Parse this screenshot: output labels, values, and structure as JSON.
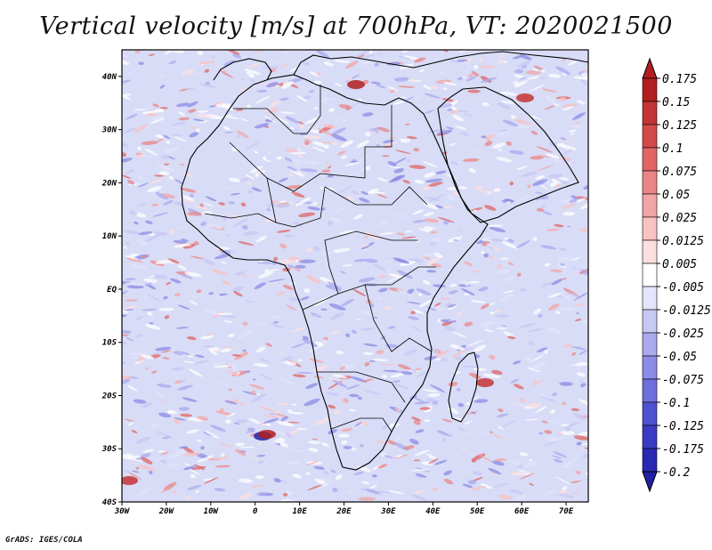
{
  "title": "Vertical velocity [m/s] at 700hPa, VT: 2020021500",
  "credit": "GrADS: IGES/COLA",
  "colors": {
    "plot_background": "#d8dcf6",
    "coastline": "#000000",
    "zero_contour": "#ffffff"
  },
  "map": {
    "region": "Africa",
    "lon_range": [
      -30,
      75
    ],
    "lat_range": [
      -40,
      45
    ],
    "lat_labels": [
      "40N",
      "30N",
      "20N",
      "10N",
      "EQ",
      "10S",
      "20S",
      "30S",
      "40S"
    ],
    "lon_labels": [
      "30W",
      "20W",
      "10W",
      "0",
      "10E",
      "20E",
      "30E",
      "40E",
      "50E",
      "60E",
      "70E"
    ]
  },
  "colorbar": {
    "labels": [
      "0.175",
      "0.15",
      "0.125",
      "0.1",
      "0.075",
      "0.05",
      "0.025",
      "0.0125",
      "0.005",
      "-0.005",
      "-0.0125",
      "-0.025",
      "-0.05",
      "-0.075",
      "-0.1",
      "-0.125",
      "-0.175",
      "-0.2"
    ],
    "colors": [
      "#b01e1e",
      "#c43434",
      "#d34a4a",
      "#e06666",
      "#ea8585",
      "#f2a5a5",
      "#f8c3c3",
      "#fce0e0",
      "#ffffff",
      "#e4e4fa",
      "#c8c8f4",
      "#aaaaee",
      "#8c8ce6",
      "#6e6edd",
      "#5050d2",
      "#3a3ac4",
      "#2828b4",
      "#2020a0"
    ]
  }
}
